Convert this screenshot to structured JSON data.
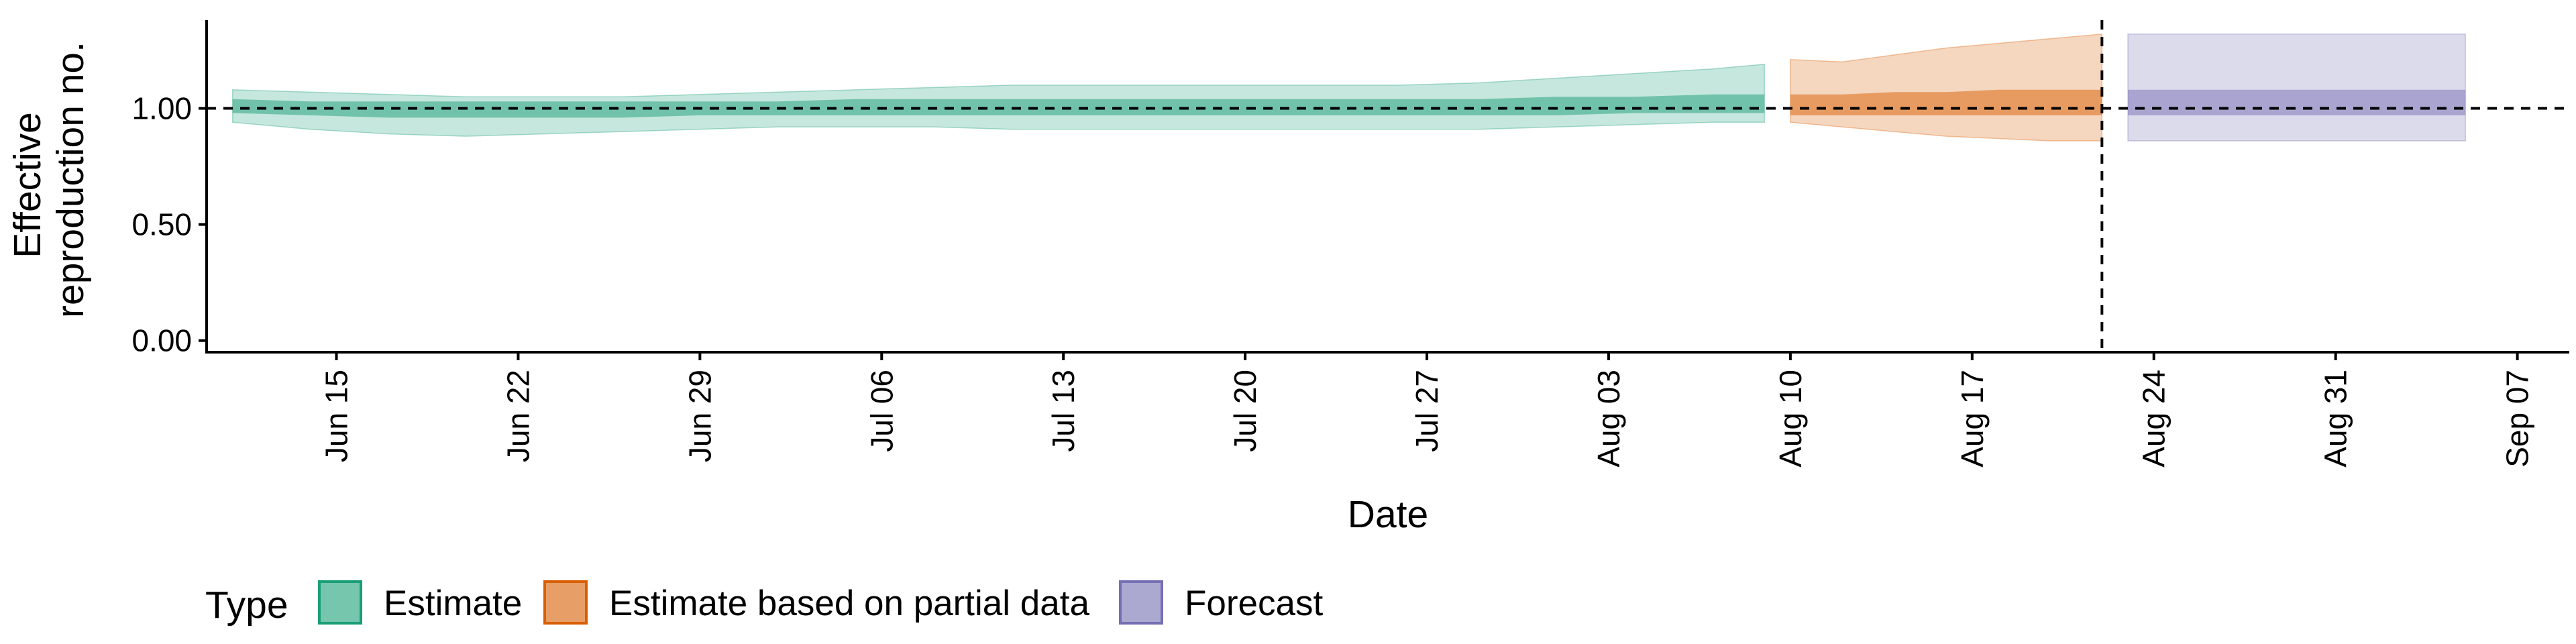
{
  "chart_data": {
    "type": "area",
    "title": "",
    "xlabel": "Date",
    "ylabel": "Effective reproduction no.",
    "ylabel_lines": [
      "Effective",
      "reproduction no."
    ],
    "x_axis": {
      "start": "2020-06-10",
      "end": "2020-09-09",
      "tick_dates": [
        "2020-06-15",
        "2020-06-22",
        "2020-06-29",
        "2020-07-06",
        "2020-07-13",
        "2020-07-20",
        "2020-07-27",
        "2020-08-03",
        "2020-08-10",
        "2020-08-17",
        "2020-08-24",
        "2020-08-31",
        "2020-09-07"
      ],
      "tick_labels": [
        "Jun 15",
        "Jun 22",
        "Jun 29",
        "Jul 06",
        "Jul 13",
        "Jul 20",
        "Jul 27",
        "Aug 03",
        "Aug 10",
        "Aug 17",
        "Aug 24",
        "Aug 31",
        "Sep 07"
      ]
    },
    "y_axis": {
      "ylim": [
        -0.05,
        1.38
      ],
      "ticks": [
        0,
        0.5,
        1.0
      ],
      "tick_labels": [
        "0.00",
        "0.50",
        "1.00"
      ]
    },
    "reference_lines": {
      "hline_y": 1.0,
      "vline_date": "2020-08-22"
    },
    "legend": {
      "title": "Type",
      "position": "bottom-left",
      "entries": [
        {
          "name": "Estimate",
          "fill": "#1b9e77",
          "border": "#1b9e77"
        },
        {
          "name": "Estimate based on partial data",
          "fill": "#d95f02",
          "border": "#d95f02"
        },
        {
          "name": "Forecast",
          "fill": "#7570b3",
          "border": "#7570b3"
        }
      ]
    },
    "series": [
      {
        "name": "Estimate",
        "color": "#1b9e77",
        "dates": [
          "2020-06-11",
          "2020-06-14",
          "2020-06-17",
          "2020-06-20",
          "2020-06-23",
          "2020-06-26",
          "2020-06-29",
          "2020-07-02",
          "2020-07-05",
          "2020-07-08",
          "2020-07-11",
          "2020-07-14",
          "2020-07-17",
          "2020-07-20",
          "2020-07-23",
          "2020-07-26",
          "2020-07-29",
          "2020-08-01",
          "2020-08-04",
          "2020-08-07",
          "2020-08-09"
        ],
        "upper90": [
          1.08,
          1.07,
          1.06,
          1.05,
          1.05,
          1.05,
          1.06,
          1.07,
          1.08,
          1.09,
          1.1,
          1.1,
          1.1,
          1.1,
          1.1,
          1.1,
          1.11,
          1.13,
          1.15,
          1.17,
          1.19
        ],
        "lower90": [
          0.94,
          0.91,
          0.89,
          0.88,
          0.89,
          0.9,
          0.91,
          0.92,
          0.92,
          0.92,
          0.91,
          0.91,
          0.91,
          0.91,
          0.91,
          0.91,
          0.91,
          0.92,
          0.93,
          0.94,
          0.94
        ],
        "upper50": [
          1.04,
          1.03,
          1.03,
          1.03,
          1.03,
          1.03,
          1.03,
          1.03,
          1.04,
          1.04,
          1.04,
          1.04,
          1.04,
          1.04,
          1.04,
          1.04,
          1.04,
          1.05,
          1.05,
          1.06,
          1.06
        ],
        "lower50": [
          0.98,
          0.97,
          0.96,
          0.96,
          0.96,
          0.96,
          0.97,
          0.97,
          0.97,
          0.97,
          0.97,
          0.97,
          0.97,
          0.97,
          0.97,
          0.97,
          0.97,
          0.97,
          0.98,
          0.98,
          0.98
        ]
      },
      {
        "name": "Estimate based on partial data",
        "color": "#d95f02",
        "dates": [
          "2020-08-10",
          "2020-08-12",
          "2020-08-14",
          "2020-08-16",
          "2020-08-18",
          "2020-08-20",
          "2020-08-22"
        ],
        "upper90": [
          1.21,
          1.2,
          1.23,
          1.26,
          1.28,
          1.3,
          1.32
        ],
        "lower90": [
          0.94,
          0.92,
          0.9,
          0.88,
          0.87,
          0.86,
          0.86
        ],
        "upper50": [
          1.06,
          1.06,
          1.07,
          1.07,
          1.08,
          1.08,
          1.08
        ],
        "lower50": [
          0.97,
          0.97,
          0.97,
          0.97,
          0.97,
          0.97,
          0.97
        ]
      },
      {
        "name": "Forecast",
        "color": "#7570b3",
        "dates": [
          "2020-08-23",
          "2020-09-05"
        ],
        "upper90": [
          1.32,
          1.32
        ],
        "lower90": [
          0.86,
          0.86
        ],
        "upper50": [
          1.08,
          1.08
        ],
        "lower50": [
          0.97,
          0.97
        ]
      }
    ]
  }
}
